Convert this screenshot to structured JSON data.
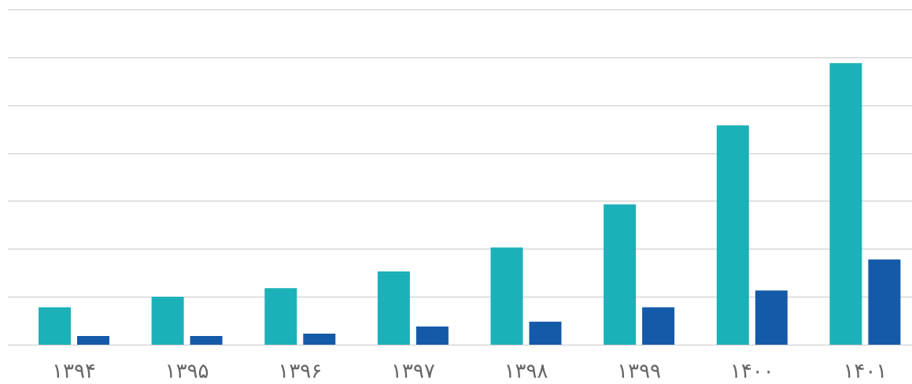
{
  "chart_data": {
    "type": "bar",
    "categories": [
      "۱۳۹۴",
      "۱۳۹۵",
      "۱۳۹۶",
      "۱۳۹۷",
      "۱۳۹۸",
      "۱۳۹۹",
      "۱۴۰۰",
      "۱۴۰۱"
    ],
    "series": [
      {
        "color": "#1cb1b9",
        "values": [
          0.78,
          1.0,
          1.18,
          1.53,
          2.03,
          2.93,
          4.58,
          5.88
        ]
      },
      {
        "color": "#155aa8",
        "values": [
          0.18,
          0.18,
          0.23,
          0.38,
          0.48,
          0.78,
          1.13,
          1.78
        ]
      }
    ],
    "ylim": [
      0,
      7
    ],
    "grid": true,
    "legend": "none",
    "title": "",
    "xlabel": "",
    "ylabel": ""
  }
}
